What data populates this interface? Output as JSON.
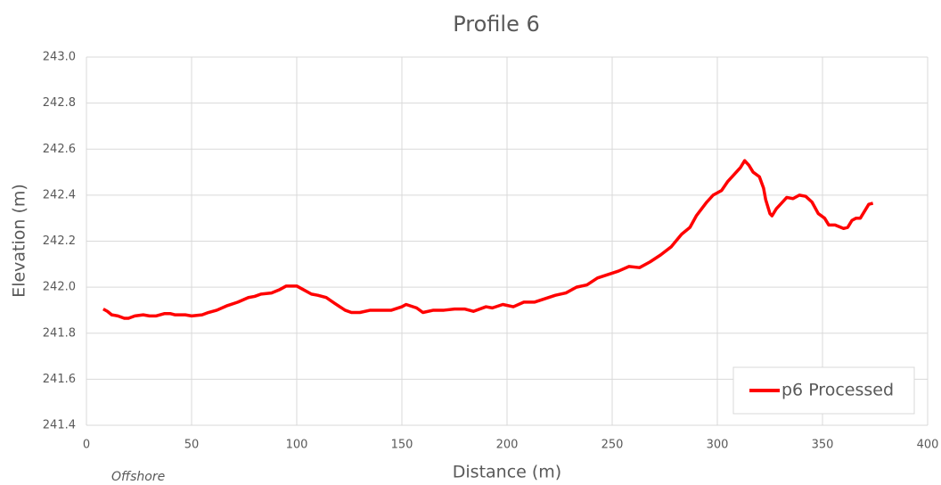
{
  "chart_data": {
    "type": "line",
    "title": "Profile 6",
    "x_label": "Distance (m)",
    "y_label": "Elevation (m)",
    "annotation": "Offshore",
    "x": [
      8,
      10,
      12,
      15,
      18,
      20,
      23,
      27,
      30,
      33,
      37,
      40,
      42,
      47,
      50,
      55,
      58,
      62,
      67,
      72,
      77,
      80,
      83,
      88,
      92,
      95,
      100,
      103,
      107,
      110,
      114,
      118,
      123,
      126,
      130,
      135,
      145,
      150,
      152,
      157,
      160,
      165,
      170,
      175,
      180,
      184,
      190,
      193,
      198,
      203,
      208,
      213,
      218,
      223,
      228,
      233,
      238,
      243,
      248,
      253,
      258,
      263,
      268,
      273,
      278,
      283,
      287,
      290,
      295,
      298,
      302,
      305,
      308,
      311,
      313,
      315,
      317,
      320,
      322,
      323,
      325,
      326,
      328,
      331,
      333,
      336,
      339,
      342,
      345,
      348,
      351,
      353,
      356,
      360,
      362,
      364,
      366,
      368,
      370,
      372,
      374
    ],
    "series": [
      {
        "name": "p6 Processed",
        "color": "#ff0000",
        "values": [
          241.905,
          241.895,
          241.88,
          241.875,
          241.865,
          241.865,
          241.875,
          241.88,
          241.875,
          241.875,
          241.885,
          241.885,
          241.88,
          241.88,
          241.875,
          241.88,
          241.89,
          241.9,
          241.92,
          241.935,
          241.955,
          241.96,
          241.97,
          241.975,
          241.99,
          242.005,
          242.005,
          241.99,
          241.97,
          241.965,
          241.955,
          241.93,
          241.9,
          241.89,
          241.89,
          241.9,
          241.9,
          241.915,
          241.925,
          241.91,
          241.89,
          241.9,
          241.9,
          241.905,
          241.905,
          241.895,
          241.915,
          241.91,
          241.925,
          241.915,
          241.935,
          241.935,
          241.95,
          241.965,
          241.975,
          242.0,
          242.01,
          242.04,
          242.055,
          242.07,
          242.09,
          242.085,
          242.11,
          242.14,
          242.175,
          242.23,
          242.26,
          242.31,
          242.37,
          242.4,
          242.42,
          242.46,
          242.49,
          242.52,
          242.55,
          242.53,
          242.5,
          242.48,
          242.43,
          242.38,
          242.32,
          242.31,
          242.34,
          242.37,
          242.39,
          242.385,
          242.4,
          242.395,
          242.37,
          242.32,
          242.3,
          242.27,
          242.27,
          242.255,
          242.26,
          242.29,
          242.3,
          242.3,
          242.33,
          242.36,
          242.365
        ]
      }
    ],
    "xlim": [
      0,
      400
    ],
    "xticks": [
      0,
      50,
      100,
      150,
      200,
      250,
      300,
      350,
      400
    ],
    "ylim": [
      241.4,
      243.0
    ],
    "yticks": [
      241.4,
      241.6,
      241.8,
      {
        "value": 242,
        "label": "242.0"
      },
      242.2,
      242.4,
      242.6,
      242.8,
      {
        "value": 243,
        "label": "243.0"
      }
    ],
    "grid": true,
    "legend": "lower right"
  }
}
